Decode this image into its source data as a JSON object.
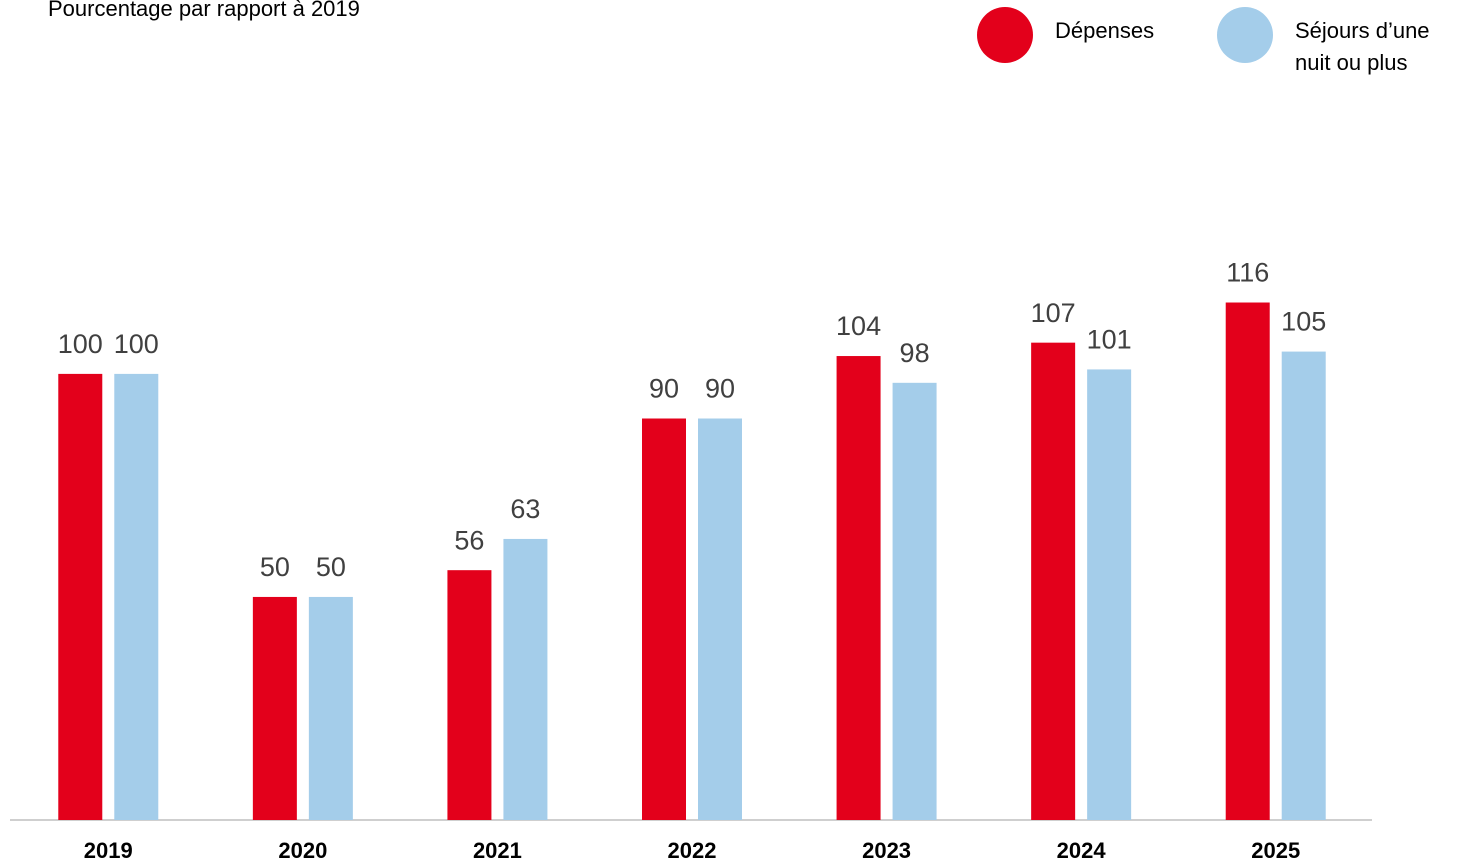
{
  "chart_data": {
    "type": "bar",
    "title": "Pourcentage par rapport à 2019",
    "categories": [
      "2019",
      "2020",
      "2021",
      "2022",
      "2023",
      "2024",
      "2025"
    ],
    "series": [
      {
        "name": "Dépenses",
        "color": "#e3001b",
        "values": [
          100,
          50,
          56,
          90,
          104,
          107,
          116
        ]
      },
      {
        "name": "Séjours d’une nuit ou plus",
        "color": "#a4cdea",
        "values": [
          100,
          50,
          63,
          90,
          98,
          101,
          105
        ]
      }
    ],
    "ylim": [
      0,
      180
    ],
    "legend": "top-right"
  }
}
